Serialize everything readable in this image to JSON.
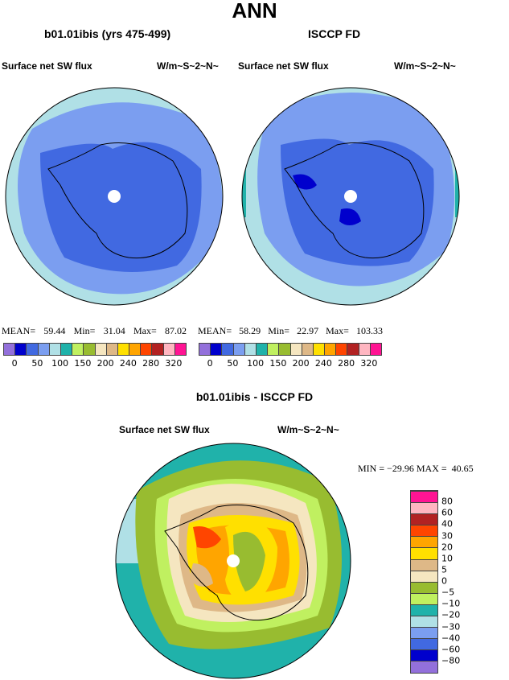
{
  "title": "ANN",
  "panels": [
    {
      "title": "b01.01ibis (yrs 475-499)",
      "field": "Surface net SW flux",
      "units": "W/m~S~2~N~",
      "mean_label": "MEAN=",
      "mean": "59.44",
      "min_label": "Min=",
      "min": "31.04",
      "max_label": "Max=",
      "max": "87.02"
    },
    {
      "title": "ISCCP FD",
      "field": "Surface net SW flux",
      "units": "W/m~S~2~N~",
      "mean_label": "MEAN=",
      "mean": "58.29",
      "min_label": "Min=",
      "min": "22.97",
      "max_label": "Max=",
      "max": "103.33"
    }
  ],
  "diff": {
    "title": "b01.01ibis - ISCCP FD",
    "field": "Surface net SW flux",
    "units": "W/m~S~2~N~",
    "minmax": "MIN = −29.96 MAX =  40.65"
  },
  "colors": [
    "#9370DB",
    "#0000CD",
    "#4169E1",
    "#7B9EF0",
    "#B0E0E6",
    "#20B2AA",
    "#C0F060",
    "#98BC30",
    "#F5E6C0",
    "#DEB887",
    "#FFE000",
    "#FFA500",
    "#FF4500",
    "#B22222",
    "#FFB6C1",
    "#FF1493"
  ],
  "abs_labels": [
    "0",
    "50",
    "100",
    "150",
    "200",
    "240",
    "280",
    "320"
  ],
  "diff_labels": [
    "−80",
    "−60",
    "−40",
    "−30",
    "−20",
    "−10",
    "−5",
    "0",
    "5",
    "10",
    "20",
    "30",
    "40",
    "60",
    "80"
  ]
}
